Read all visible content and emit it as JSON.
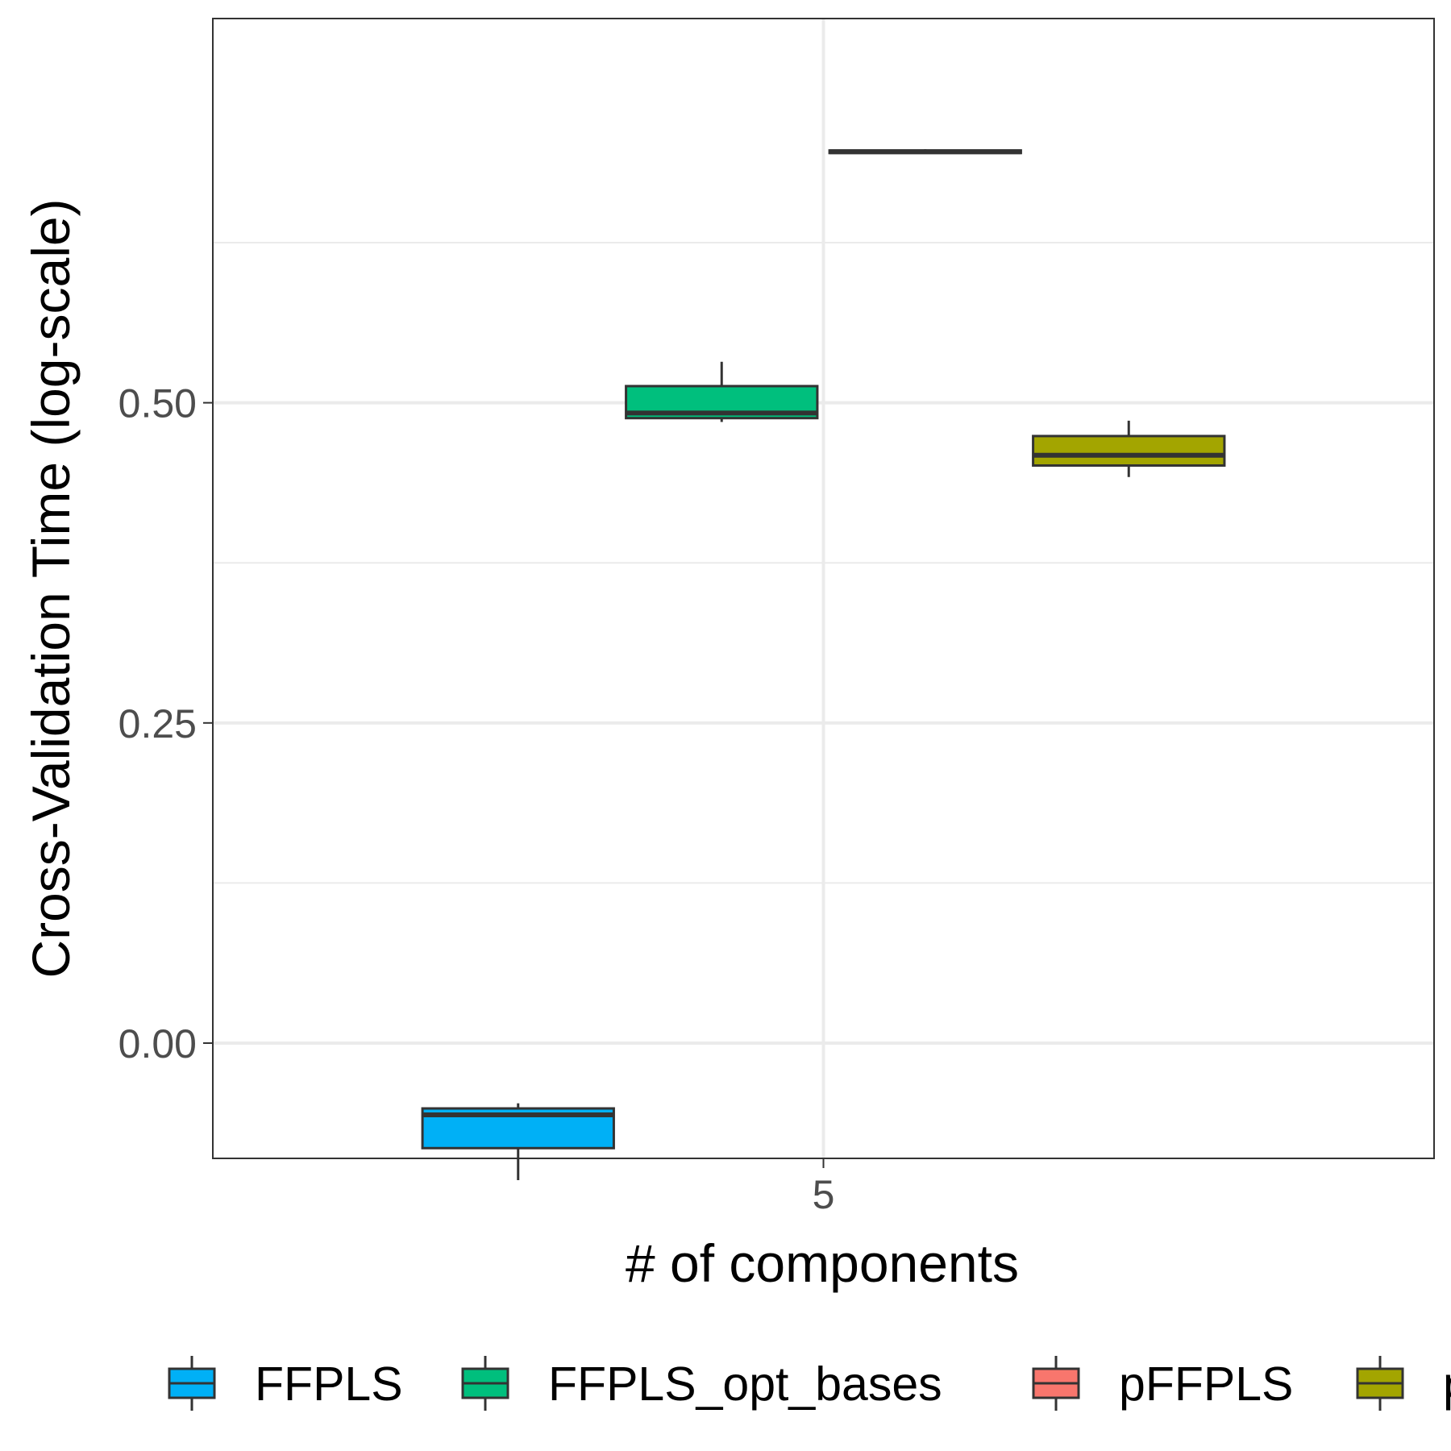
{
  "chart_data": {
    "type": "box",
    "xlabel": "# of components",
    "ylabel": "Cross-Validation Time (log-scale)",
    "categories": [
      "5"
    ],
    "y_scale": "log",
    "ylim": [
      -0.09,
      0.8
    ],
    "y_ticks": [
      "0.00",
      "0.25",
      "0.50"
    ],
    "y_tick_values": [
      0.0,
      0.25,
      0.5
    ],
    "grid": true,
    "legend_position": "bottom",
    "series": [
      {
        "name": "FFPLS",
        "color": "#00b0f6",
        "box": {
          "category": "5",
          "whisker_low": -0.107,
          "q1": -0.082,
          "median": -0.056,
          "q3": -0.051,
          "whisker_high": -0.047
        }
      },
      {
        "name": "FFPLS_opt_bases",
        "color": "#00bf7d",
        "box": {
          "category": "5",
          "whisker_low": 0.485,
          "q1": 0.488,
          "median": 0.492,
          "q3": 0.513,
          "whisker_high": 0.532
        }
      },
      {
        "name": "pFFPLS",
        "color": "#f8766d",
        "box": {
          "category": "5",
          "whisker_low": 0.695,
          "q1": 0.695,
          "median": 0.696,
          "q3": 0.697,
          "whisker_high": 0.698
        }
      },
      {
        "name": "",
        "color": "#a3a500",
        "box": {
          "category": "5",
          "whisker_low": 0.442,
          "q1": 0.451,
          "median": 0.459,
          "q3": 0.474,
          "whisker_high": 0.486
        }
      }
    ],
    "legend": [
      "FFPLS",
      "FFPLS_opt_bases",
      "pFFPLS",
      "p"
    ]
  }
}
